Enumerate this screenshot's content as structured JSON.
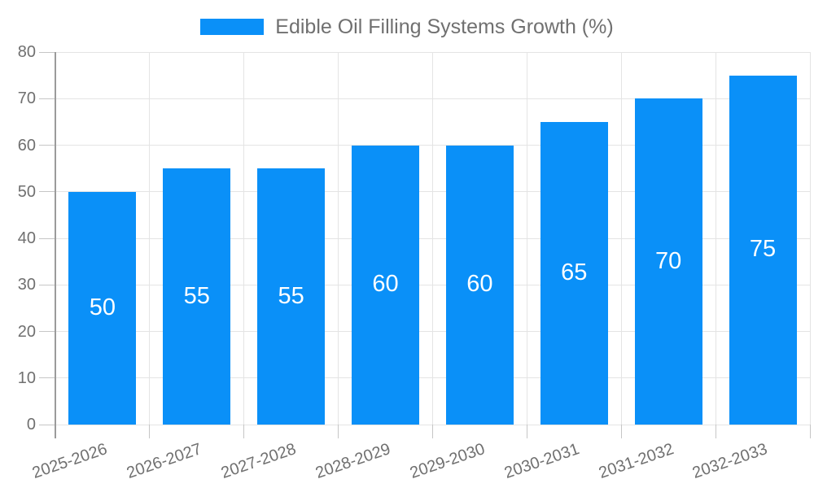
{
  "legend": {
    "label": "Edible Oil Filling Systems Growth (%)"
  },
  "chart_data": {
    "type": "bar",
    "title": "Edible Oil Filling Systems Growth (%)",
    "categories": [
      "2025-2026",
      "2026-2027",
      "2027-2028",
      "2028-2029",
      "2029-2030",
      "2030-2031",
      "2031-2032",
      "2032-2033"
    ],
    "values": [
      50,
      55,
      55,
      60,
      60,
      65,
      70,
      75
    ],
    "xlabel": "",
    "ylabel": "",
    "ylim": [
      0,
      80
    ],
    "ytick_step": 10,
    "yticks": [
      0,
      10,
      20,
      30,
      40,
      50,
      60,
      70,
      80
    ],
    "grid": true,
    "legend_position": "top",
    "value_label_position": "inside-center",
    "colors": {
      "bar": "#0a90f8",
      "grid": "#e4e4e4",
      "tick": "#c6c6c6",
      "axis": "#9b9b9b",
      "text": "#707070",
      "value_label": "#ffffff",
      "background": "#ffffff"
    }
  }
}
